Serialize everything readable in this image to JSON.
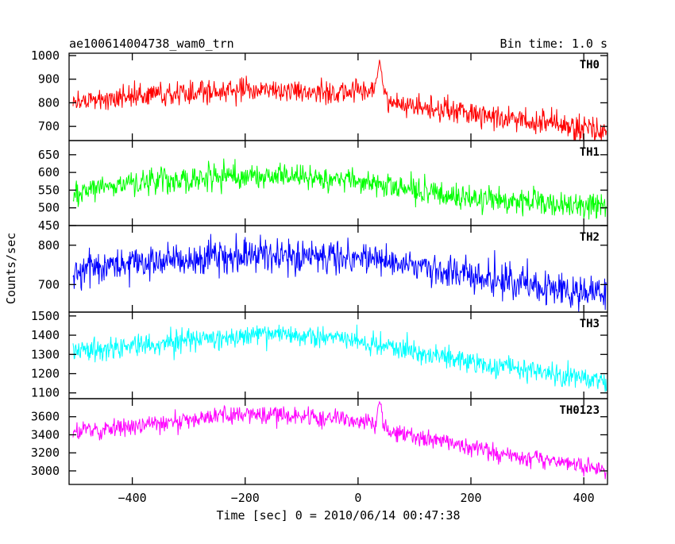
{
  "header": {
    "title": "ae100614004738_wam0_trn",
    "bin_time": "Bin time: 1.0 s"
  },
  "chart_data": {
    "type": "line",
    "title": "ae100614004738_wam0_trn",
    "xlabel": "Time [sec] 0 = 2010/06/14 00:47:38",
    "ylabel": "Counts/sec",
    "xlim": [
      -512,
      442
    ],
    "x_data_range": [
      -505,
      440
    ],
    "x_ticks": [
      -400,
      -200,
      0,
      200,
      400
    ],
    "x_tick_labels": [
      "−400",
      "−200",
      "0",
      "200",
      "400"
    ],
    "sample_step_sec": 1.0,
    "panels": [
      {
        "name": "TH0",
        "color": "#ff0000",
        "ylim": [
          640,
          1010
        ],
        "yticks": [
          700,
          800,
          900,
          1000
        ],
        "trend": [
          [
            -505,
            810
          ],
          [
            -400,
            825
          ],
          [
            -250,
            850
          ],
          [
            -150,
            855
          ],
          [
            -50,
            840
          ],
          [
            30,
            860
          ],
          [
            40,
            900
          ],
          [
            55,
            800
          ],
          [
            150,
            770
          ],
          [
            250,
            740
          ],
          [
            350,
            710
          ],
          [
            440,
            675
          ]
        ],
        "noise": 35,
        "burst": {
          "x": 38,
          "peak": 975
        }
      },
      {
        "name": "TH1",
        "color": "#00ff00",
        "ylim": [
          450,
          690
        ],
        "yticks": [
          450,
          500,
          550,
          600,
          650
        ],
        "trend": [
          [
            -505,
            545
          ],
          [
            -400,
            570
          ],
          [
            -250,
            585
          ],
          [
            -150,
            590
          ],
          [
            -50,
            585
          ],
          [
            50,
            565
          ],
          [
            150,
            540
          ],
          [
            250,
            520
          ],
          [
            350,
            510
          ],
          [
            440,
            500
          ]
        ],
        "noise": 25
      },
      {
        "name": "TH2",
        "color": "#0000ff",
        "ylim": [
          630,
          850
        ],
        "yticks": [
          700,
          800
        ],
        "trend": [
          [
            -505,
            740
          ],
          [
            -400,
            755
          ],
          [
            -250,
            770
          ],
          [
            -150,
            775
          ],
          [
            -50,
            770
          ],
          [
            50,
            760
          ],
          [
            150,
            740
          ],
          [
            250,
            710
          ],
          [
            350,
            690
          ],
          [
            440,
            675
          ]
        ],
        "noise": 30
      },
      {
        "name": "TH3",
        "color": "#00ffff",
        "ylim": [
          1070,
          1520
        ],
        "yticks": [
          1100,
          1200,
          1300,
          1400,
          1500
        ],
        "trend": [
          [
            -505,
            1310
          ],
          [
            -400,
            1340
          ],
          [
            -250,
            1390
          ],
          [
            -150,
            1405
          ],
          [
            -50,
            1390
          ],
          [
            50,
            1340
          ],
          [
            150,
            1290
          ],
          [
            250,
            1240
          ],
          [
            350,
            1200
          ],
          [
            440,
            1160
          ]
        ],
        "noise": 40
      },
      {
        "name": "TH0123",
        "color": "#ff00ff",
        "ylim": [
          2850,
          3800
        ],
        "yticks": [
          3000,
          3200,
          3400,
          3600
        ],
        "trend": [
          [
            -505,
            3420
          ],
          [
            -400,
            3500
          ],
          [
            -250,
            3600
          ],
          [
            -150,
            3620
          ],
          [
            -50,
            3580
          ],
          [
            30,
            3530
          ],
          [
            40,
            3650
          ],
          [
            55,
            3430
          ],
          [
            150,
            3320
          ],
          [
            250,
            3200
          ],
          [
            350,
            3110
          ],
          [
            440,
            3010
          ]
        ],
        "noise": 70,
        "burst": {
          "x": 38,
          "peak": 3780
        }
      }
    ]
  }
}
